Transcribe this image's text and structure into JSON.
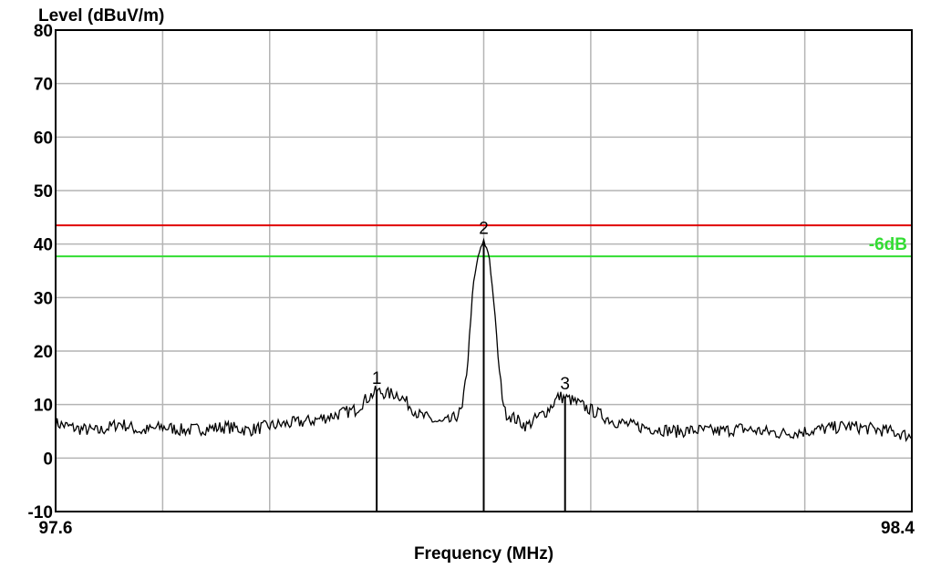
{
  "chart_data": {
    "type": "line",
    "ylabel": "Level (dBuV/m)",
    "xlabel": "Frequency (MHz)",
    "xlim": [
      97.6,
      98.4
    ],
    "ylim": [
      -10,
      80
    ],
    "x_tick_labels": [
      "97.6",
      "98.4"
    ],
    "y_ticks": [
      80,
      70,
      60,
      50,
      40,
      30,
      20,
      10,
      0,
      -10
    ],
    "grid": true,
    "colors": {
      "trace": "#000000",
      "limit": "#e00000",
      "minus6db": "#33dd33",
      "grid": "#b4b4b4"
    },
    "reference_lines": [
      {
        "label": "",
        "y": 43.5,
        "color": "#e00000"
      },
      {
        "label": "-6dB",
        "y": 37.7,
        "color": "#33dd33"
      }
    ],
    "markers": [
      {
        "label": "1",
        "x": 97.9,
        "y": 12.5
      },
      {
        "label": "2",
        "x": 98.0,
        "y": 40.5
      },
      {
        "label": "3",
        "x": 98.076,
        "y": 11.5
      }
    ],
    "series": [
      {
        "x": [
          97.6,
          97.62,
          97.64,
          97.66,
          97.68,
          97.7,
          97.72,
          97.74,
          97.76,
          97.78,
          97.8,
          97.82,
          97.84,
          97.86,
          97.88,
          97.89,
          97.9,
          97.91,
          97.92,
          97.94,
          97.96,
          97.97,
          97.98,
          97.985,
          97.99,
          97.995,
          98.0,
          98.005,
          98.01,
          98.015,
          98.02,
          98.04,
          98.06,
          98.07,
          98.08,
          98.09,
          98.1,
          98.12,
          98.14,
          98.16,
          98.18,
          98.2,
          98.22,
          98.24,
          98.26,
          98.28,
          98.3,
          98.32,
          98.34,
          98.36,
          98.38,
          98.4
        ],
        "y": [
          6.5,
          5.5,
          5.0,
          6.5,
          5.0,
          5.8,
          5.2,
          5.5,
          5.8,
          5.2,
          6.0,
          6.5,
          7.0,
          8.0,
          9.0,
          11.0,
          12.5,
          12.0,
          12.0,
          8.0,
          6.5,
          7.0,
          9.0,
          18.0,
          32.0,
          38.0,
          40.5,
          38.0,
          28.0,
          15.0,
          8.5,
          6.0,
          9.0,
          11.5,
          11.0,
          10.0,
          9.0,
          7.0,
          6.0,
          5.5,
          5.0,
          5.2,
          5.0,
          5.5,
          5.0,
          4.6,
          5.0,
          5.5,
          6.0,
          5.5,
          5.0,
          4.0
        ]
      }
    ]
  }
}
